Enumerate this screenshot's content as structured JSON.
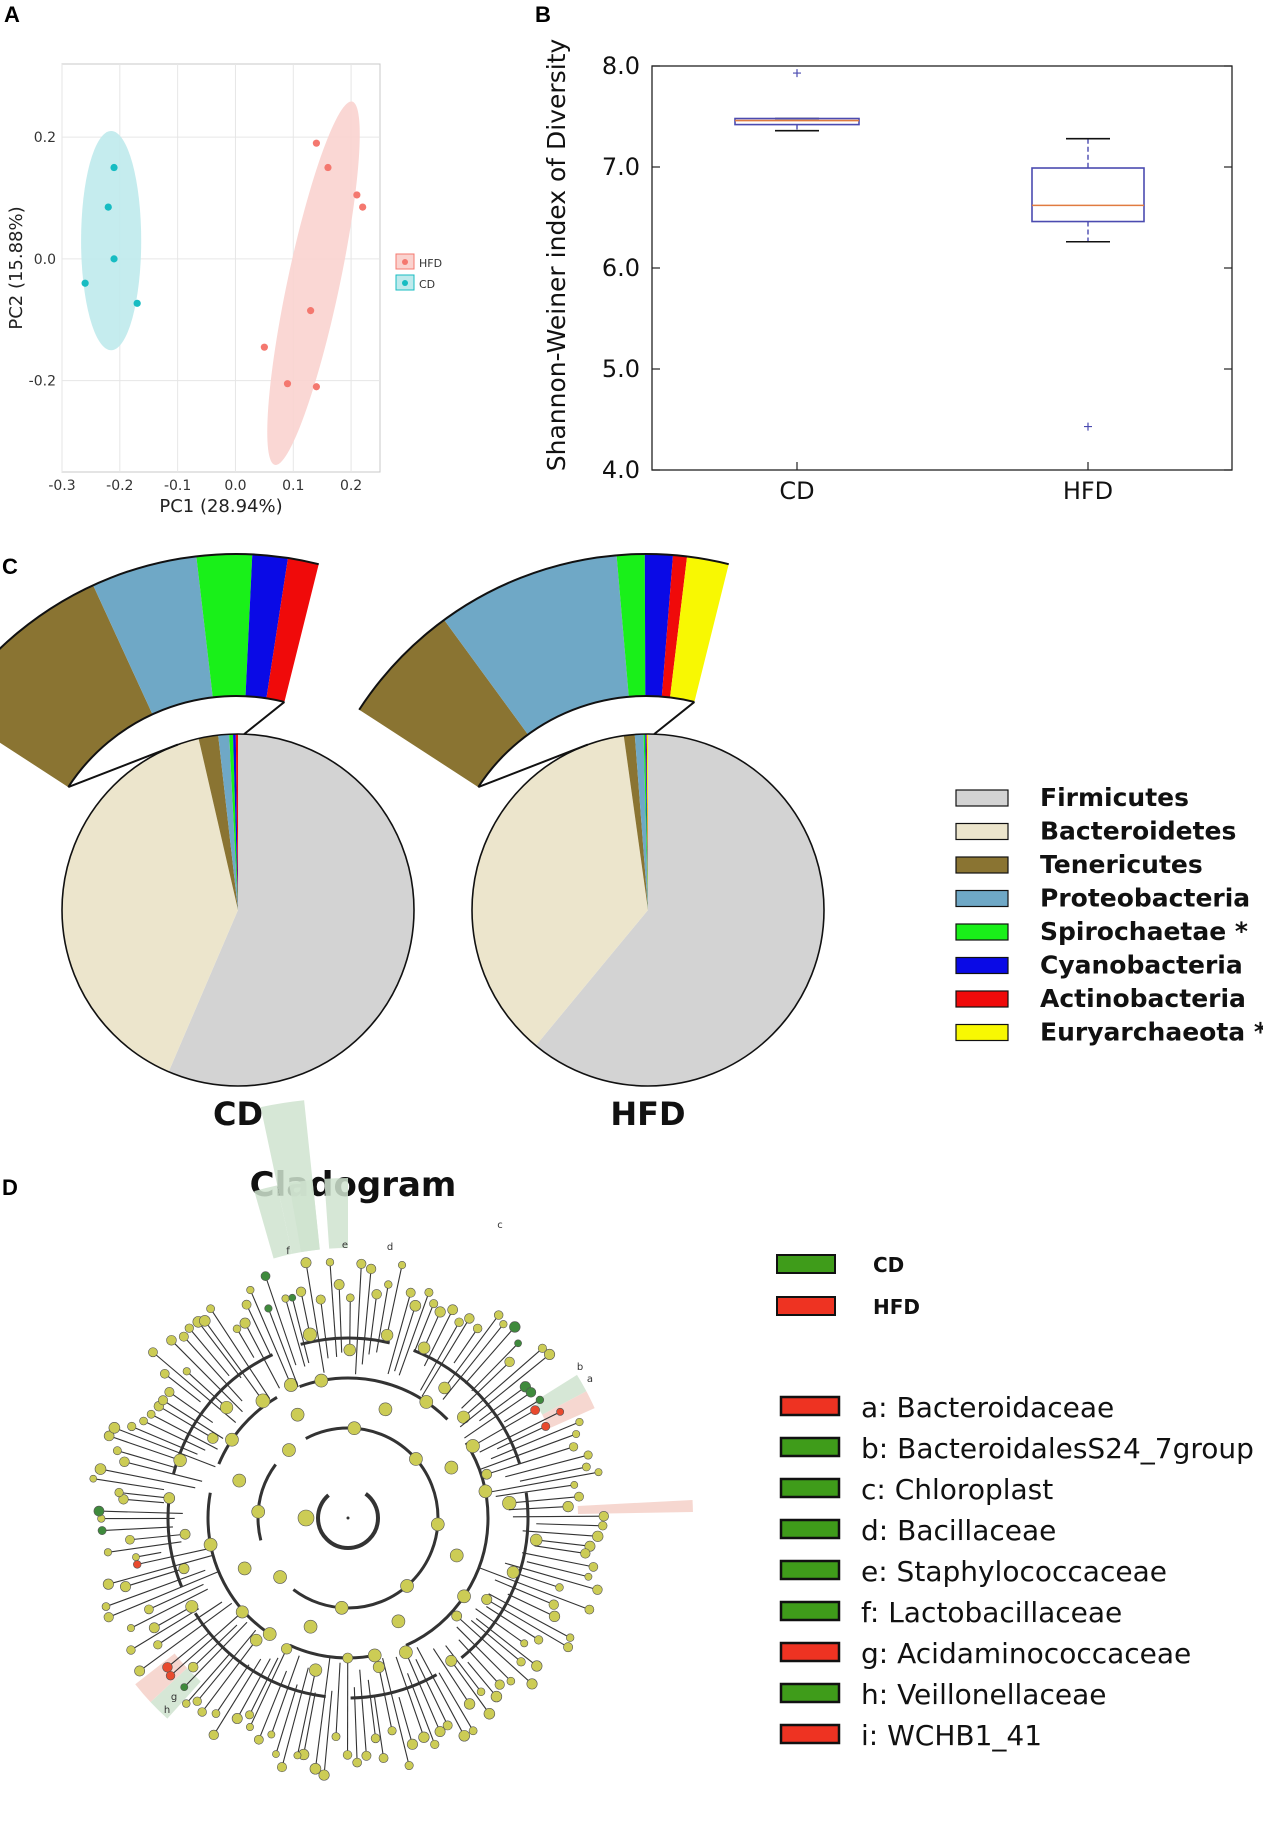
{
  "panels": {
    "a": "A",
    "b": "B",
    "c": "C",
    "d": "D"
  },
  "colors": {
    "hfd_pca": "#f4786f",
    "hfd_pca_fill": "#fad3cf",
    "cd_pca": "#17bcc2",
    "cd_pca_fill": "#bfeaec",
    "box_blue": "#4b4bb0",
    "box_median": "#e07b40",
    "clad_node": "#cccc55",
    "clad_green": "#3f8a3c",
    "clad_red": "#e84a2e",
    "leg_green": "#3f9c1a",
    "leg_red": "#ee3322"
  },
  "chart_data": [
    {
      "type": "scatter",
      "panel": "A",
      "xlabel": "PC1 (28.94%)",
      "ylabel": "PC2 (15.88%)",
      "xlim": [
        -0.3,
        0.25
      ],
      "ylim": [
        -0.35,
        0.32
      ],
      "xticks": [
        -0.3,
        -0.2,
        -0.1,
        0.0,
        0.1,
        0.2
      ],
      "xtick_labels": [
        "-0.3",
        "-0.2",
        "-0.1",
        "0.0",
        "0.1",
        "0.2"
      ],
      "yticks": [
        0.2,
        0.0,
        -0.2
      ],
      "ytick_labels": [
        "0.2",
        "0.0",
        "-0.2"
      ],
      "legend_position": "right",
      "series": [
        {
          "name": "HFD",
          "points": [
            [
              0.14,
              0.19
            ],
            [
              0.16,
              0.15
            ],
            [
              0.21,
              0.105
            ],
            [
              0.22,
              0.085
            ],
            [
              0.13,
              -0.085
            ],
            [
              0.05,
              -0.145
            ],
            [
              0.09,
              -0.205
            ],
            [
              0.14,
              -0.21
            ]
          ],
          "ellipse": {
            "cx": 0.135,
            "cy": -0.04,
            "rx": 0.045,
            "ry": 0.305,
            "angle_deg": 12
          }
        },
        {
          "name": "CD",
          "points": [
            [
              -0.21,
              0.15
            ],
            [
              -0.22,
              0.085
            ],
            [
              -0.21,
              0.0
            ],
            [
              -0.26,
              -0.04
            ],
            [
              -0.17,
              -0.073
            ]
          ],
          "ellipse": {
            "cx": -0.215,
            "cy": 0.03,
            "rx": 0.052,
            "ry": 0.18,
            "angle_deg": 0
          }
        }
      ]
    },
    {
      "type": "box",
      "panel": "B",
      "ylabel": "Shannon-Weiner index of Diversity",
      "categories": [
        "CD",
        "HFD"
      ],
      "yticks": [
        4.0,
        5.0,
        6.0,
        7.0,
        8.0
      ],
      "ytick_labels": [
        "4.0",
        "5.0",
        "6.0",
        "7.0",
        "8.0"
      ],
      "boxes": [
        {
          "name": "CD",
          "whisker_low": 7.36,
          "q1": 7.42,
          "median": 7.46,
          "q3": 7.48,
          "whisker_high": 7.48,
          "outliers": [
            7.93
          ]
        },
        {
          "name": "HFD",
          "whisker_low": 6.26,
          "q1": 6.46,
          "median": 6.62,
          "q3": 6.99,
          "whisker_high": 7.28,
          "outliers": [
            4.43
          ]
        }
      ]
    },
    {
      "type": "pie",
      "panel": "C",
      "legend": [
        {
          "label": "Firmicutes",
          "color": "#d3d3d3"
        },
        {
          "label": "Bacteroidetes",
          "color": "#ece5cc"
        },
        {
          "label": "Tenericutes",
          "color": "#8a7432"
        },
        {
          "label": "Proteobacteria",
          "color": "#6fa8c6"
        },
        {
          "label": "Spirochaetae *",
          "color": "#19f019"
        },
        {
          "label": "Cyanobacteria",
          "color": "#0a0ae6"
        },
        {
          "label": "Actinobacteria",
          "color": "#f00a0a"
        },
        {
          "label": "Euryarchaeota *",
          "color": "#f8f802"
        }
      ],
      "pies": [
        {
          "name": "CD",
          "values": [
            56.5,
            40.0,
            1.8,
            1.0,
            0.35,
            0.25,
            0.2,
            0.0
          ],
          "zoom_values": [
            8.6,
            4.8,
            2.5,
            1.6,
            1.4,
            0.0
          ]
        },
        {
          "name": "HFD",
          "values": [
            61.0,
            36.8,
            1.0,
            0.8,
            0.15,
            0.1,
            0.05,
            0.1
          ],
          "zoom_values": [
            4.4,
            6.6,
            1.0,
            1.0,
            0.5,
            1.5
          ]
        }
      ]
    },
    {
      "type": "cladogram",
      "panel": "D",
      "title": "Cladogram",
      "groups": [
        {
          "name": "CD",
          "color": "#3f9c1a"
        },
        {
          "name": "HFD",
          "color": "#ee3322"
        }
      ],
      "clades": [
        {
          "letter": "a",
          "label": "a: Bacteroidaceae",
          "group": "HFD"
        },
        {
          "letter": "b",
          "label": "b: BacteroidalesS24_7group",
          "group": "CD"
        },
        {
          "letter": "c",
          "label": "c: Chloroplast",
          "group": "CD"
        },
        {
          "letter": "d",
          "label": "d: Bacillaceae",
          "group": "CD"
        },
        {
          "letter": "e",
          "label": "e: Staphylococcaceae",
          "group": "CD"
        },
        {
          "letter": "f",
          "label": "f: Lactobacillaceae",
          "group": "CD"
        },
        {
          "letter": "g",
          "label": "g: Acidaminococcaceae",
          "group": "HFD"
        },
        {
          "letter": "h",
          "label": "h: Veillonellaceae",
          "group": "CD"
        },
        {
          "letter": "i",
          "label": "i: WCHB1_41",
          "group": "HFD"
        }
      ]
    }
  ]
}
